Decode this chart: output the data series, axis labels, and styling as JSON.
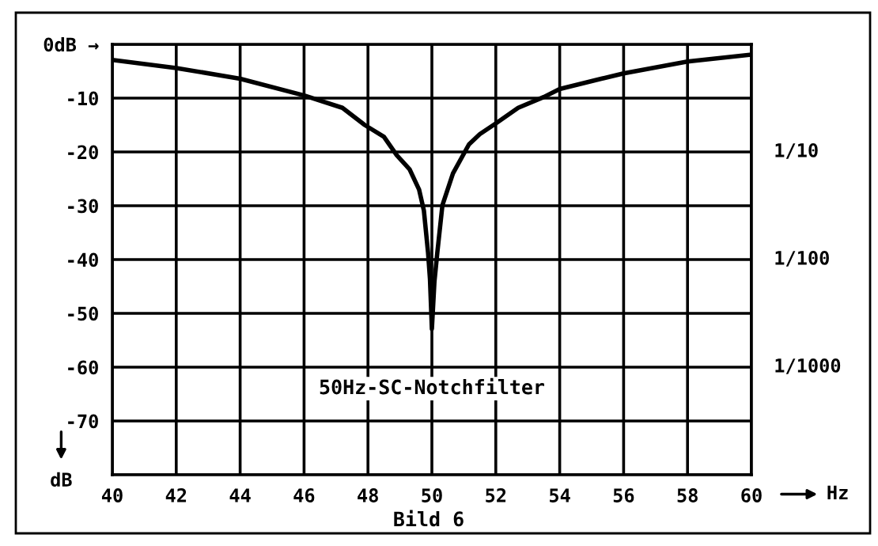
{
  "chart_data": {
    "type": "line",
    "xlabel": "Hz",
    "ylabel": "dB",
    "annotations": [
      "50Hz-SC-Notchfilter",
      "Bild 6",
      "1/10",
      "1/100",
      "1/1000"
    ],
    "x": [
      40,
      42,
      44,
      46,
      47.2,
      47.9,
      48.5,
      48.9,
      49.3,
      49.6,
      49.75,
      49.88,
      49.94,
      50,
      50.08,
      50.17,
      50.33,
      50.66,
      51.16,
      51.5,
      52,
      52.7,
      53.5,
      54,
      55.3,
      56,
      58,
      60
    ],
    "series": [
      {
        "color": "#000000",
        "values": [
          -2.9,
          -4.4,
          -6.4,
          -9.5,
          -11.8,
          -15,
          -17.2,
          -20.6,
          -23.2,
          -27,
          -30.9,
          -38.7,
          -43.6,
          -52.9,
          -44.1,
          -38.7,
          -29.9,
          -24,
          -18.6,
          -16.7,
          -14.7,
          -11.8,
          -9.8,
          -8.3,
          -6.4,
          -5.4,
          -3.2,
          -1.9
        ]
      }
    ],
    "xlim": [
      40,
      60
    ],
    "xticks": [
      40,
      42,
      44,
      46,
      48,
      50,
      52,
      54,
      56,
      58,
      60
    ],
    "ylim": [
      -80,
      0
    ],
    "yticks": [
      {
        "value": 0,
        "label": "0dB →"
      },
      -10,
      -20,
      -30,
      -40,
      -50,
      -60,
      -70,
      {
        "value": -80,
        "label": null
      }
    ],
    "grid": true,
    "legend": false,
    "marker": "none",
    "line_style": "solid"
  }
}
